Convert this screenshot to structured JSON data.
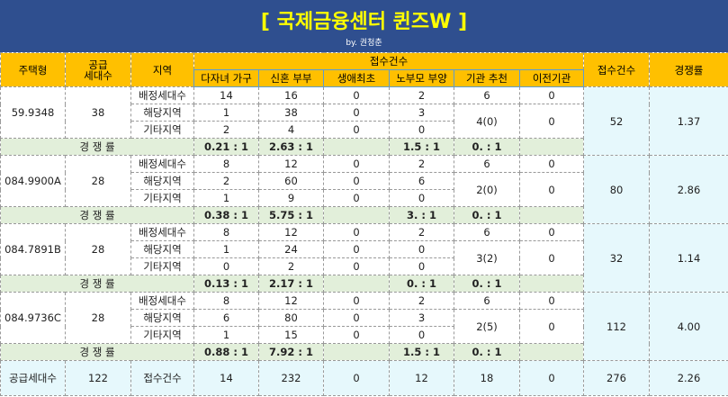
{
  "header": {
    "title": "[ 국제금융센터 퀸즈W ]",
    "subtitle": "by. 권청춘"
  },
  "columns": {
    "type": "주택형",
    "supply": "공급\n세대수",
    "region": "지역",
    "receipts": "접수건수",
    "sub": [
      "다자녀 가구",
      "신혼 부부",
      "생애최초",
      "노부모 부양",
      "기관 추천",
      "이전기관"
    ],
    "total": "접수건수",
    "rate": "경쟁률"
  },
  "comp_label": "경 쟁 률",
  "groups": [
    {
      "type": "59.9348",
      "supply": 38,
      "rows": [
        {
          "region": "배정세대수",
          "values": [
            14,
            16,
            0,
            2,
            6,
            0
          ]
        },
        {
          "region": "해당지역",
          "values": [
            1,
            38,
            0,
            3
          ]
        },
        {
          "region": "기타지역",
          "values": [
            2,
            4,
            0,
            0
          ]
        }
      ],
      "institution": "4(0)",
      "transfer": 0,
      "receipts": 52,
      "rate": "1.37",
      "comp": [
        "0.21 : 1",
        "2.63 : 1",
        null,
        "1.5 : 1",
        "0. : 1",
        null
      ]
    },
    {
      "type": "084.9900A",
      "supply": 28,
      "rows": [
        {
          "region": "배정세대수",
          "values": [
            8,
            12,
            0,
            2,
            6,
            0
          ]
        },
        {
          "region": "해당지역",
          "values": [
            2,
            60,
            0,
            6
          ]
        },
        {
          "region": "기타지역",
          "values": [
            1,
            9,
            0,
            0
          ]
        }
      ],
      "institution": "2(0)",
      "transfer": 0,
      "receipts": 80,
      "rate": "2.86",
      "comp": [
        "0.38 : 1",
        "5.75 : 1",
        null,
        "3. : 1",
        "0. : 1",
        null
      ]
    },
    {
      "type": "084.7891B",
      "supply": 28,
      "rows": [
        {
          "region": "배정세대수",
          "values": [
            8,
            12,
            0,
            2,
            6,
            0
          ]
        },
        {
          "region": "해당지역",
          "values": [
            1,
            24,
            0,
            0
          ]
        },
        {
          "region": "기타지역",
          "values": [
            0,
            2,
            0,
            0
          ]
        }
      ],
      "institution": "3(2)",
      "transfer": 0,
      "receipts": 32,
      "rate": "1.14",
      "comp": [
        "0.13 : 1",
        "2.17 : 1",
        null,
        "0. : 1",
        "0. : 1",
        null
      ]
    },
    {
      "type": "084.9736C",
      "supply": 28,
      "rows": [
        {
          "region": "배정세대수",
          "values": [
            8,
            12,
            0,
            2,
            6,
            0
          ]
        },
        {
          "region": "해당지역",
          "values": [
            6,
            80,
            0,
            3
          ]
        },
        {
          "region": "기타지역",
          "values": [
            1,
            15,
            0,
            0
          ]
        }
      ],
      "institution": "2(5)",
      "transfer": 0,
      "receipts": 112,
      "rate": "4.00",
      "comp": [
        "0.88 : 1",
        "7.92 : 1",
        null,
        "1.5 : 1",
        "0. : 1",
        null
      ]
    }
  ],
  "total": {
    "label": "공급세대수",
    "supply": 122,
    "receipts_label": "접수건수",
    "values": [
      14,
      232,
      0,
      12,
      18,
      0
    ],
    "receipts": 276,
    "rate": "2.26"
  }
}
